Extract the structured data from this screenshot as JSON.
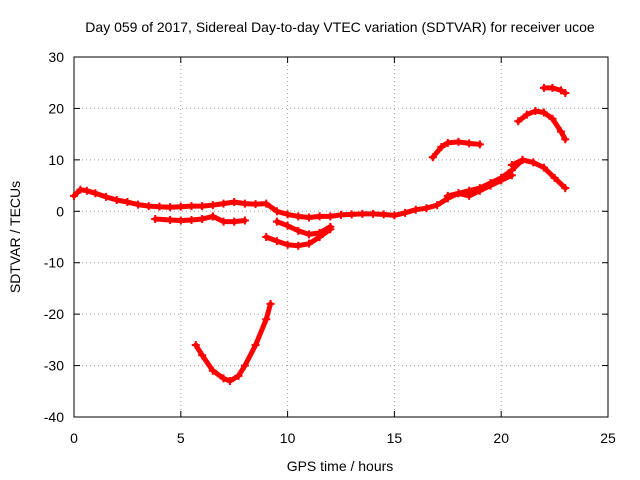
{
  "chart_data": {
    "type": "scatter",
    "title": "Day 059 of 2017, Sidereal Day-to-day VTEC variation (SDTVAR) for receiver ucoe",
    "xlabel": "GPS time / hours",
    "ylabel": "SDTVAR / TECUs",
    "xlim": [
      0,
      25
    ],
    "ylim": [
      -40,
      30
    ],
    "xticks": [
      "0",
      "5",
      "10",
      "15",
      "20",
      "25"
    ],
    "yticks": [
      "-40",
      "-30",
      "-20",
      "-10",
      "0",
      "10",
      "20",
      "30"
    ],
    "grid": true,
    "marker": "+",
    "color": "#ff0000",
    "series": [
      {
        "name": "trace-main",
        "x": [
          0.0,
          0.3,
          0.6,
          1.0,
          1.5,
          2.0,
          2.5,
          3.0,
          3.5,
          4.0,
          4.5,
          5.0,
          5.5,
          6.0,
          6.5,
          7.0,
          7.5,
          8.0,
          8.5,
          9.0,
          9.5,
          10.0,
          10.5,
          11.0,
          11.5,
          12.0,
          12.5,
          13.0,
          13.5,
          14.0,
          14.5,
          15.0,
          15.5,
          16.0,
          16.5,
          17.0,
          17.5,
          18.0,
          18.5,
          19.0,
          19.5,
          20.0,
          20.5,
          21.0
        ],
        "y": [
          3.0,
          4.2,
          4.0,
          3.5,
          2.8,
          2.2,
          1.8,
          1.3,
          1.0,
          0.9,
          0.8,
          0.9,
          1.0,
          1.0,
          1.2,
          1.5,
          1.8,
          1.5,
          1.4,
          1.5,
          0.0,
          -0.6,
          -1.0,
          -1.2,
          -1.0,
          -1.0,
          -0.7,
          -0.6,
          -0.5,
          -0.5,
          -0.6,
          -0.8,
          -0.3,
          0.3,
          0.6,
          1.2,
          2.5,
          3.5,
          4.0,
          4.5,
          5.5,
          6.5,
          8.0,
          10.0
        ]
      },
      {
        "name": "trace-lower-left",
        "x": [
          3.8,
          4.5,
          5.0,
          5.5,
          6.0,
          6.5
        ],
        "y": [
          -1.5,
          -1.7,
          -1.8,
          -1.7,
          -1.5,
          -1.0
        ]
      },
      {
        "name": "trace-dip-short",
        "x": [
          6.5,
          7.0,
          7.5,
          8.0
        ],
        "y": [
          -1.0,
          -2.0,
          -2.0,
          -1.8
        ]
      },
      {
        "name": "trace-dip-a",
        "x": [
          9.0,
          9.5,
          10.0,
          10.5,
          11.0,
          11.5,
          12.0
        ],
        "y": [
          -5.0,
          -5.8,
          -6.5,
          -6.7,
          -6.3,
          -5.0,
          -3.5
        ]
      },
      {
        "name": "trace-dip-b",
        "x": [
          9.5,
          10.0,
          10.5,
          11.0,
          11.5,
          12.0
        ],
        "y": [
          -2.0,
          -2.8,
          -3.8,
          -4.5,
          -4.2,
          -3.0
        ]
      },
      {
        "name": "trace-v-shape",
        "x": [
          5.7,
          6.0,
          6.5,
          7.0,
          7.3,
          7.7,
          8.0,
          8.5,
          9.0,
          9.2
        ],
        "y": [
          -26.0,
          -28.0,
          -31.0,
          -32.5,
          -33.0,
          -32.0,
          -30.0,
          -26.0,
          -21.0,
          -18.0
        ]
      },
      {
        "name": "trace-upper-mid",
        "x": [
          16.8,
          17.2,
          17.5,
          18.0,
          18.5,
          19.0
        ],
        "y": [
          10.5,
          12.5,
          13.3,
          13.5,
          13.2,
          13.0
        ]
      },
      {
        "name": "trace-upper-right",
        "x": [
          20.8,
          21.2,
          21.6,
          22.0,
          22.4,
          22.8,
          23.0
        ],
        "y": [
          17.5,
          18.8,
          19.5,
          19.2,
          18.0,
          15.5,
          14.0
        ]
      },
      {
        "name": "trace-top-right",
        "x": [
          22.0,
          22.4,
          22.8,
          23.0
        ],
        "y": [
          24.0,
          24.0,
          23.5,
          23.0
        ]
      },
      {
        "name": "trace-right-descend",
        "x": [
          20.5,
          21.0,
          21.5,
          22.0,
          22.5,
          23.0
        ],
        "y": [
          9.0,
          10.0,
          9.5,
          8.5,
          6.5,
          4.5
        ]
      },
      {
        "name": "trace-right-lower",
        "x": [
          17.5,
          18.0,
          18.5,
          19.0,
          19.5,
          20.0,
          20.5
        ],
        "y": [
          3.0,
          3.5,
          3.0,
          4.0,
          5.0,
          6.0,
          7.0
        ]
      }
    ]
  }
}
